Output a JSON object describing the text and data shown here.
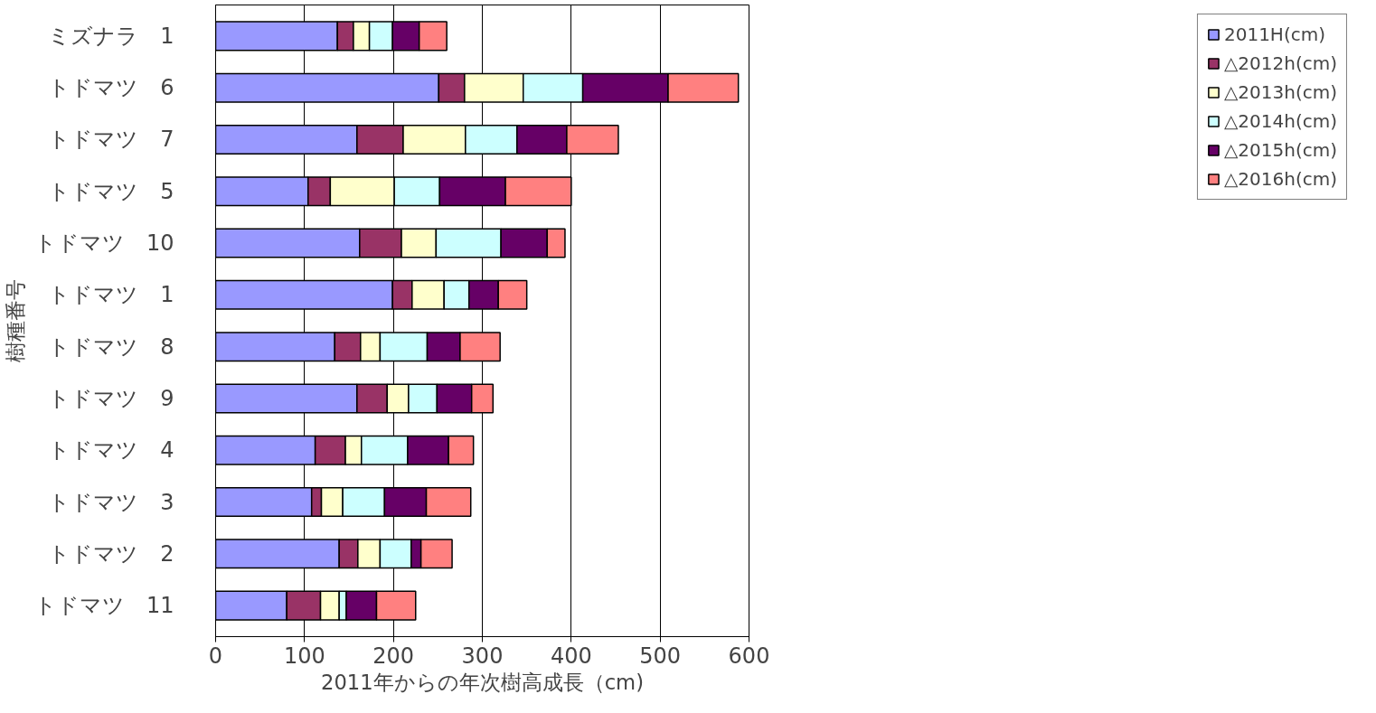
{
  "chart_data": {
    "type": "bar",
    "orientation": "horizontal",
    "stacked": true,
    "xlabel": "2011年からの年次樹高成長（cm)",
    "ylabel": "樹種番号",
    "categories": [
      "ミズナラ　1",
      "トドマツ　6",
      "トドマツ　7",
      "トドマツ　5",
      "トドマツ　10",
      "トドマツ　1",
      "トドマツ　8",
      "トドマツ　9",
      "トドマツ　4",
      "トドマツ　3",
      "トドマツ　2",
      "トドマツ　11"
    ],
    "series": [
      {
        "name": "2011H(cm)",
        "color": "#9999ff",
        "values": [
          137,
          251,
          159,
          104,
          162,
          199,
          134,
          159,
          112,
          108,
          139,
          80
        ]
      },
      {
        "name": "△2012h(cm)",
        "color": "#993366",
        "values": [
          18,
          29,
          52,
          25,
          47,
          22,
          29,
          34,
          34,
          11,
          21,
          38
        ]
      },
      {
        "name": "△2013h(cm)",
        "color": "#ffffcc",
        "values": [
          18,
          66,
          70,
          72,
          39,
          36,
          22,
          24,
          18,
          24,
          25,
          21
        ]
      },
      {
        "name": "△2014h(cm)",
        "color": "#ccffff",
        "values": [
          26,
          67,
          58,
          51,
          73,
          28,
          53,
          32,
          52,
          47,
          35,
          8
        ]
      },
      {
        "name": "△2015h(cm)",
        "color": "#660066",
        "values": [
          30,
          96,
          56,
          74,
          52,
          33,
          37,
          39,
          46,
          47,
          11,
          34
        ]
      },
      {
        "name": "△2016h(cm)",
        "color": "#ff8080",
        "values": [
          31,
          79,
          58,
          74,
          20,
          32,
          45,
          24,
          28,
          50,
          35,
          44
        ]
      }
    ],
    "xlim": [
      0,
      600
    ],
    "xticks": [
      0,
      100,
      200,
      300,
      400,
      500,
      600
    ],
    "grid": "x",
    "legend": "right"
  }
}
